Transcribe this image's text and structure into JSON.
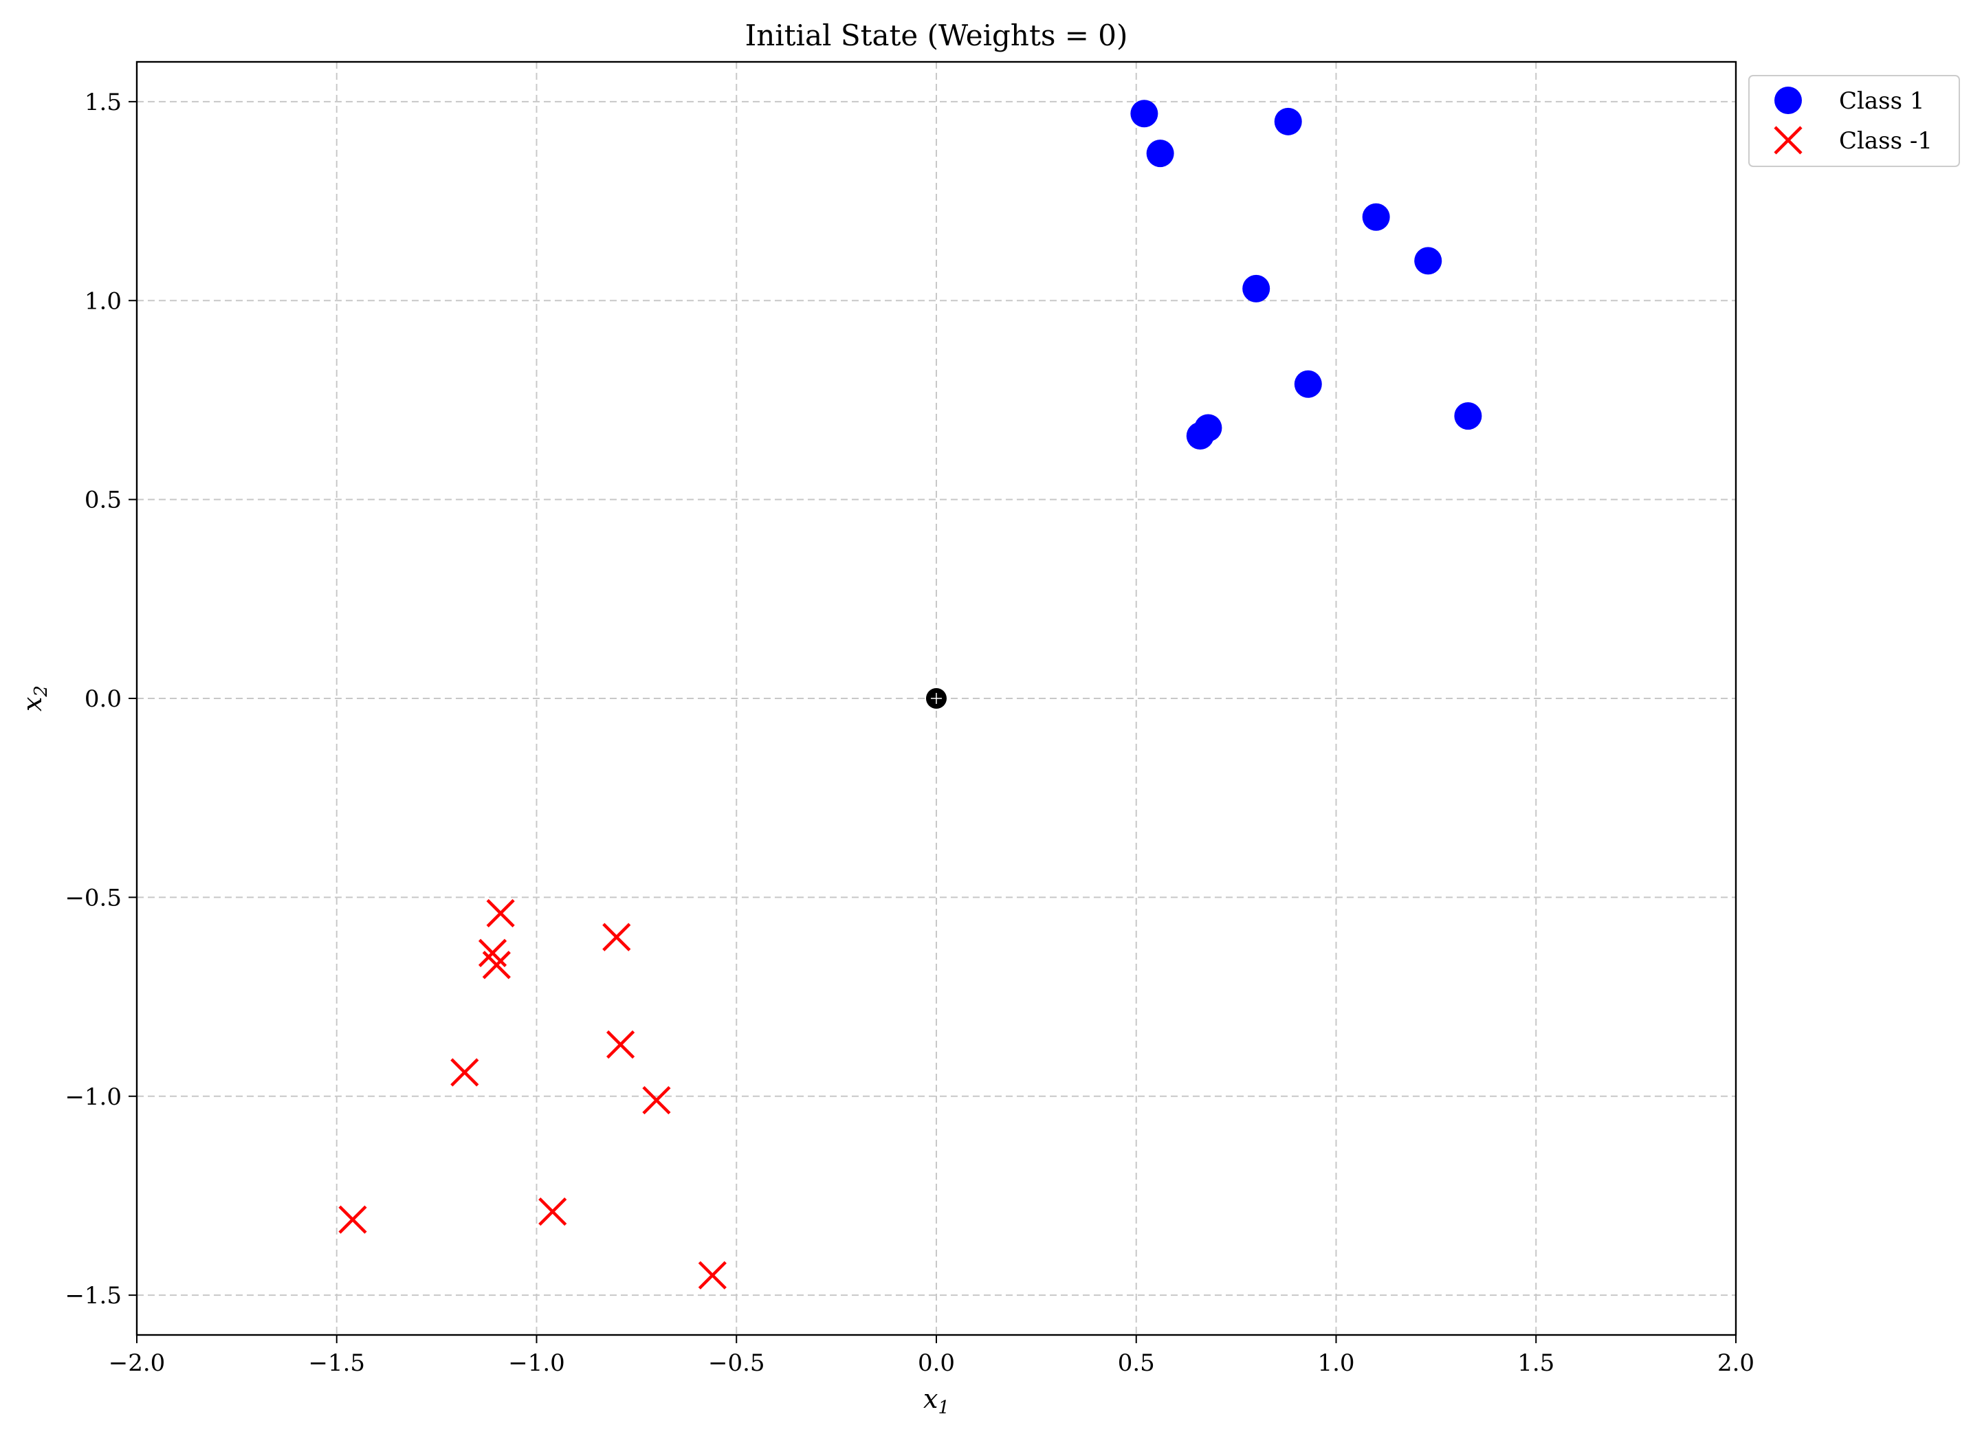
{
  "chart_data": {
    "type": "scatter",
    "title": "Initial State (Weights = 0)",
    "xlabel": "x",
    "xlabel_sub": "1",
    "ylabel": "x",
    "ylabel_sub": "2",
    "xlim": [
      -2.0,
      2.0
    ],
    "ylim": [
      -1.6,
      1.6
    ],
    "xticks": [
      -2.0,
      -1.5,
      -1.0,
      -0.5,
      0.0,
      0.5,
      1.0,
      1.5,
      2.0
    ],
    "xtick_labels": [
      "−2.0",
      "−1.5",
      "−1.0",
      "−0.5",
      "0.0",
      "0.5",
      "1.0",
      "1.5",
      "2.0"
    ],
    "yticks": [
      -1.5,
      -1.0,
      -0.5,
      0.0,
      0.5,
      1.0,
      1.5
    ],
    "ytick_labels": [
      "−1.5",
      "−1.0",
      "−0.5",
      "0.0",
      "0.5",
      "1.0",
      "1.5"
    ],
    "grid": true,
    "legend_position": "outside-top-right",
    "series": [
      {
        "name": "Class 1",
        "marker": "circle",
        "color": "#0000ff",
        "points": [
          [
            0.52,
            1.47
          ],
          [
            0.56,
            1.37
          ],
          [
            0.88,
            1.45
          ],
          [
            1.1,
            1.21
          ],
          [
            1.23,
            1.1
          ],
          [
            0.8,
            1.03
          ],
          [
            0.93,
            0.79
          ],
          [
            1.33,
            0.71
          ],
          [
            0.68,
            0.68
          ],
          [
            0.66,
            0.66
          ]
        ]
      },
      {
        "name": "Class -1",
        "marker": "x",
        "color": "#ff0000",
        "points": [
          [
            -1.09,
            -0.54
          ],
          [
            -0.8,
            -0.6
          ],
          [
            -1.11,
            -0.64
          ],
          [
            -1.1,
            -0.67
          ],
          [
            -0.79,
            -0.87
          ],
          [
            -1.18,
            -0.94
          ],
          [
            -0.7,
            -1.01
          ],
          [
            -1.46,
            -1.31
          ],
          [
            -0.96,
            -1.29
          ],
          [
            -0.56,
            -1.45
          ]
        ]
      }
    ],
    "origin_marker": {
      "x": 0.0,
      "y": 0.0,
      "color": "#000000"
    }
  }
}
